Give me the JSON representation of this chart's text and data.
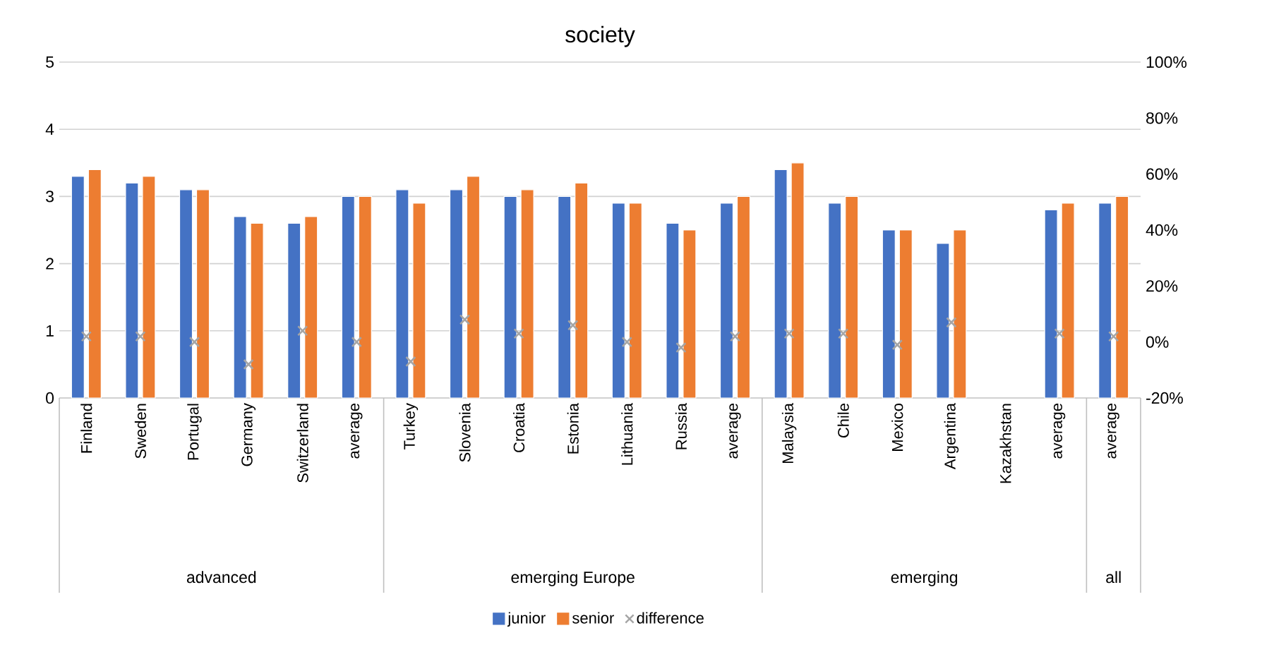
{
  "chart_data": {
    "type": "bar",
    "title": "society",
    "categories": [
      "Finland",
      "Sweden",
      "Portugal",
      "Germany",
      "Switzerland",
      "average",
      "Turkey",
      "Slovenia",
      "Croatia",
      "Estonia",
      "Lithuania",
      "Russia",
      "average",
      "Malaysia",
      "Chile",
      "Mexico",
      "Argentina",
      "Kazakhstan",
      "average",
      "average"
    ],
    "series": [
      {
        "name": "junior",
        "color": "#4472c4",
        "values": [
          3.3,
          3.2,
          3.1,
          2.7,
          2.6,
          3.0,
          3.1,
          3.1,
          3.0,
          3.0,
          2.9,
          2.6,
          2.9,
          3.4,
          2.9,
          2.5,
          2.3,
          null,
          2.8,
          2.9
        ]
      },
      {
        "name": "senior",
        "color": "#ed7d31",
        "values": [
          3.4,
          3.3,
          3.1,
          2.6,
          2.7,
          3.0,
          2.9,
          3.3,
          3.1,
          3.2,
          2.9,
          2.5,
          3.0,
          3.5,
          3.0,
          2.5,
          2.5,
          null,
          2.9,
          3.0
        ]
      },
      {
        "name": "difference",
        "type": "scatter",
        "axis": "y2",
        "marker": "cross",
        "color": "#a5a5a5",
        "values": [
          2,
          2,
          0,
          -8,
          4,
          0,
          -7,
          8,
          3,
          6,
          0,
          -2,
          2,
          3,
          3,
          -1,
          7,
          null,
          3,
          2
        ]
      }
    ],
    "ylim": [
      0,
      5
    ],
    "yticks": [
      0,
      1,
      2,
      3,
      4,
      5
    ],
    "y2lim": [
      -20,
      100
    ],
    "y2ticks": [
      {
        "value": -20,
        "label": "-20%"
      },
      {
        "value": 0,
        "label": "0%"
      },
      {
        "value": 20,
        "label": "20%"
      },
      {
        "value": 40,
        "label": "40%"
      },
      {
        "value": 60,
        "label": "60%"
      },
      {
        "value": 80,
        "label": "80%"
      },
      {
        "value": 100,
        "label": "100%"
      }
    ],
    "grid": "y",
    "legend": "bottom",
    "annotations": [
      "advanced",
      "emerging Europe",
      "emerging",
      "all"
    ]
  }
}
